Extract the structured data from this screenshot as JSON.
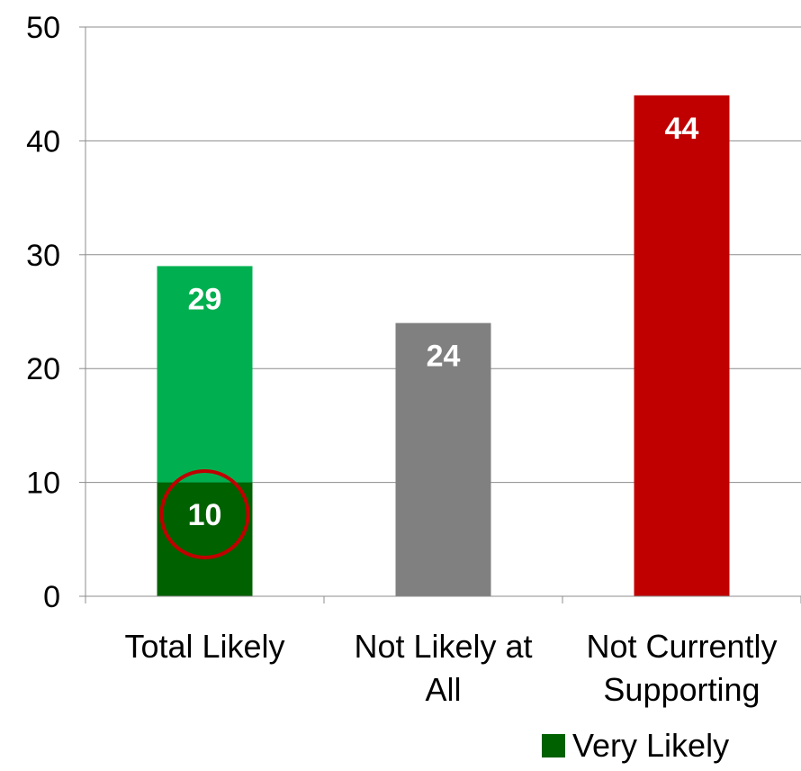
{
  "chart_data": {
    "type": "bar",
    "categories": [
      [
        "Total Likely"
      ],
      [
        "Not Likely at",
        "All"
      ],
      [
        "Not Currently",
        "Supporting"
      ]
    ],
    "bars": [
      {
        "category": "Total Likely",
        "value": 29,
        "label": "29",
        "color": "#00b050"
      },
      {
        "category": "Total Likely",
        "value": 10,
        "label": "10",
        "color": "#006100",
        "highlighted": true,
        "highlight_color": "#c00000"
      },
      {
        "category": "Not Likely at All",
        "value": 24,
        "label": "24",
        "color": "#808080"
      },
      {
        "category": "Not Currently Supporting",
        "value": 44,
        "label": "44",
        "color": "#c00000"
      }
    ],
    "series": [
      {
        "name": "Very Likely",
        "color": "#006100",
        "values": [
          10,
          null,
          null
        ]
      }
    ],
    "ylim": [
      0,
      50
    ],
    "yticks": [
      0,
      10,
      20,
      30,
      40,
      50
    ],
    "grid": true,
    "legend_position": "bottom-right"
  }
}
